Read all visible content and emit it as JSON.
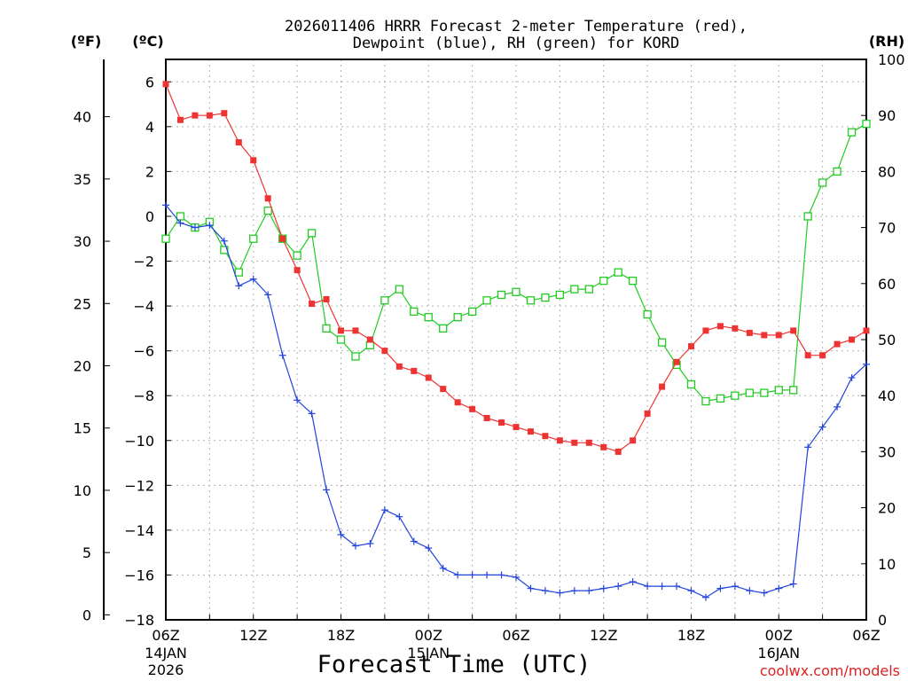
{
  "chart_data": {
    "type": "line",
    "title_line1": "2026011406 HRRR Forecast 2-meter Temperature (red),",
    "title_line2": "Dewpoint (blue), RH (green) for KORD",
    "xlabel": "Forecast Time (UTC)",
    "watermark": "coolwx.com/models",
    "left_outer_axis": {
      "label": "(ºF)",
      "ticks": [
        0,
        5,
        10,
        15,
        20,
        25,
        30,
        35,
        40
      ],
      "range": [
        -0.4,
        44.6
      ]
    },
    "left_inner_axis": {
      "label": "(ºC)",
      "ticks": [
        -18,
        -16,
        -14,
        -12,
        -10,
        -8,
        -6,
        -4,
        -2,
        0,
        2,
        4,
        6
      ],
      "range": [
        -18,
        7
      ]
    },
    "right_axis": {
      "label": "(RH)",
      "ticks": [
        0,
        10,
        20,
        30,
        40,
        50,
        60,
        70,
        80,
        90,
        100
      ],
      "range": [
        0,
        100
      ]
    },
    "x_range_hours": [
      0,
      48
    ],
    "x_ticks": [
      {
        "hour": 0,
        "label": "06Z",
        "date1": "14JAN",
        "date2": "2026"
      },
      {
        "hour": 6,
        "label": "12Z"
      },
      {
        "hour": 12,
        "label": "18Z"
      },
      {
        "hour": 18,
        "label": "00Z",
        "date1": "15JAN"
      },
      {
        "hour": 24,
        "label": "06Z"
      },
      {
        "hour": 30,
        "label": "12Z"
      },
      {
        "hour": 36,
        "label": "18Z"
      },
      {
        "hour": 42,
        "label": "00Z",
        "date1": "16JAN"
      },
      {
        "hour": 48,
        "label": "06Z"
      }
    ],
    "hours": [
      0,
      1,
      2,
      3,
      4,
      5,
      6,
      7,
      8,
      9,
      10,
      11,
      12,
      13,
      14,
      15,
      16,
      17,
      18,
      19,
      20,
      21,
      22,
      23,
      24,
      25,
      26,
      27,
      28,
      29,
      30,
      31,
      32,
      33,
      34,
      35,
      36,
      37,
      38,
      39,
      40,
      41,
      42,
      43,
      44,
      45,
      46,
      47,
      48
    ],
    "series": [
      {
        "name": "Temperature",
        "unit": "C",
        "color": "#ee3333",
        "marker": "filled-square",
        "values": [
          5.9,
          4.3,
          4.5,
          4.5,
          4.6,
          3.3,
          2.5,
          0.8,
          -1.0,
          -2.4,
          -3.9,
          -3.7,
          -5.1,
          -5.1,
          -5.5,
          -6.0,
          -6.7,
          -6.9,
          -7.2,
          -7.7,
          -8.3,
          -8.6,
          -9.0,
          -9.2,
          -9.4,
          -9.6,
          -9.8,
          -10.0,
          -10.1,
          -10.1,
          -10.3,
          -10.5,
          -10.0,
          -8.8,
          -7.6,
          -6.5,
          -5.8,
          -5.1,
          -4.9,
          -5.0,
          -5.2,
          -5.3,
          -5.3,
          -5.1,
          -6.2,
          -6.2,
          -5.7,
          -5.5,
          -5.1
        ]
      },
      {
        "name": "Dewpoint",
        "unit": "C",
        "color": "#2244dd",
        "marker": "plus",
        "values": [
          0.5,
          -0.3,
          -0.5,
          -0.4,
          -1.1,
          -3.1,
          -2.8,
          -3.5,
          -6.2,
          -8.2,
          -8.8,
          -12.2,
          -14.2,
          -14.7,
          -14.6,
          -13.1,
          -13.4,
          -14.5,
          -14.8,
          -15.7,
          -16.0,
          -16.0,
          -16.0,
          -16.0,
          -16.1,
          -16.6,
          -16.7,
          -16.8,
          -16.7,
          -16.7,
          -16.6,
          -16.5,
          -16.3,
          -16.5,
          -16.5,
          -16.5,
          -16.7,
          -17.0,
          -16.6,
          -16.5,
          -16.7,
          -16.8,
          -16.6,
          -16.4,
          -10.3,
          -9.4,
          -8.5,
          -7.2,
          -6.6
        ]
      },
      {
        "name": "RH",
        "unit": "%",
        "color": "#22cc22",
        "marker": "open-square",
        "values": [
          68,
          72,
          70,
          71,
          66,
          62,
          68,
          73,
          68,
          65,
          69,
          52,
          50,
          47,
          49,
          57,
          59,
          55,
          54,
          52,
          54,
          55,
          57,
          58,
          58.5,
          57,
          57.5,
          58,
          59,
          59,
          60.5,
          62,
          60.5,
          54.5,
          49.5,
          45.5,
          42,
          39,
          39.5,
          40,
          40.5,
          40.5,
          41,
          41,
          72,
          78,
          80,
          87,
          88.5
        ]
      }
    ]
  }
}
